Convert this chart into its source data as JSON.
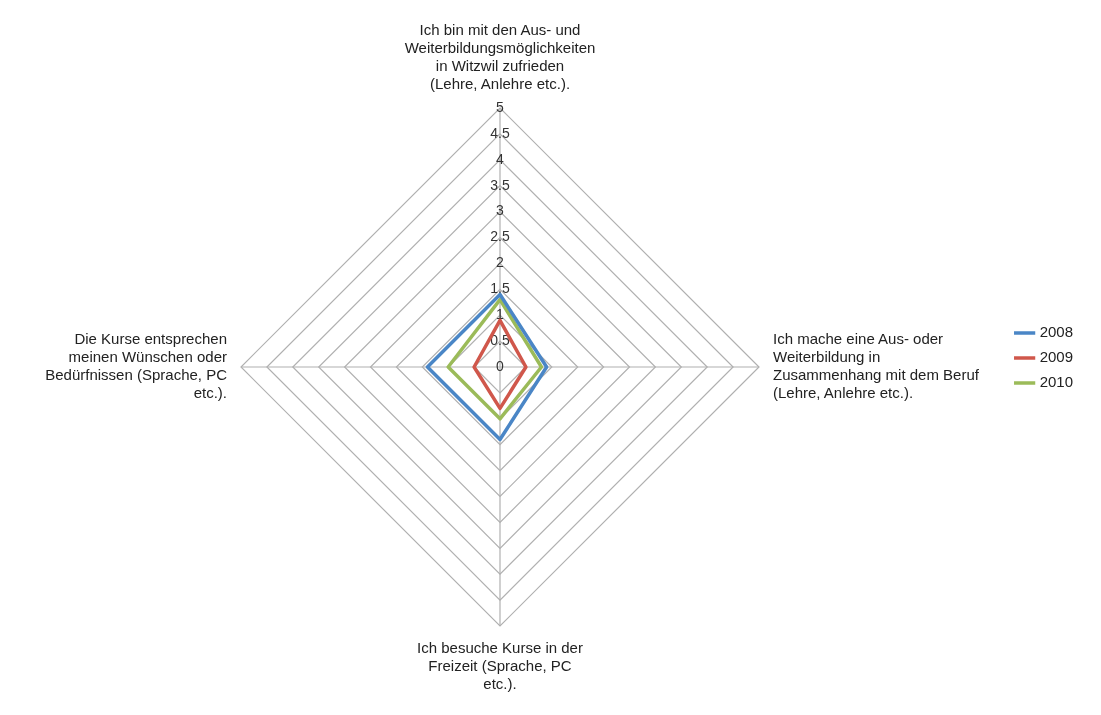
{
  "chart_data": {
    "type": "radar",
    "categories": [
      "Ich bin mit den Aus- und Weiterbildungsmöglichkeiten in Witzwil zufrieden (Lehre, Anlehre etc.).",
      "Ich mache eine Aus- oder Weiterbildung in Zusammenhang mit dem Beruf (Lehre, Anlehre etc.).",
      "Ich besuche Kurse in der Freizeit (Sprache, PC etc.).",
      "Die Kurse entsprechen meinen Wünschen oder Bedürfnissen (Sprache, PC etc.)."
    ],
    "series": [
      {
        "name": "2008",
        "color": "#4a86c6",
        "values": [
          1.4,
          0.9,
          1.4,
          1.4
        ]
      },
      {
        "name": "2009",
        "color": "#d0574b",
        "values": [
          0.9,
          0.5,
          0.8,
          0.5
        ]
      },
      {
        "name": "2010",
        "color": "#9bbb59",
        "values": [
          1.3,
          0.8,
          1.0,
          1.0
        ]
      }
    ],
    "ylim": [
      0,
      5
    ],
    "yticks": [
      0,
      0.5,
      1,
      1.5,
      2,
      2.5,
      3,
      3.5,
      4,
      4.5,
      5
    ],
    "grid": true,
    "legend": "right",
    "marker": "none"
  }
}
